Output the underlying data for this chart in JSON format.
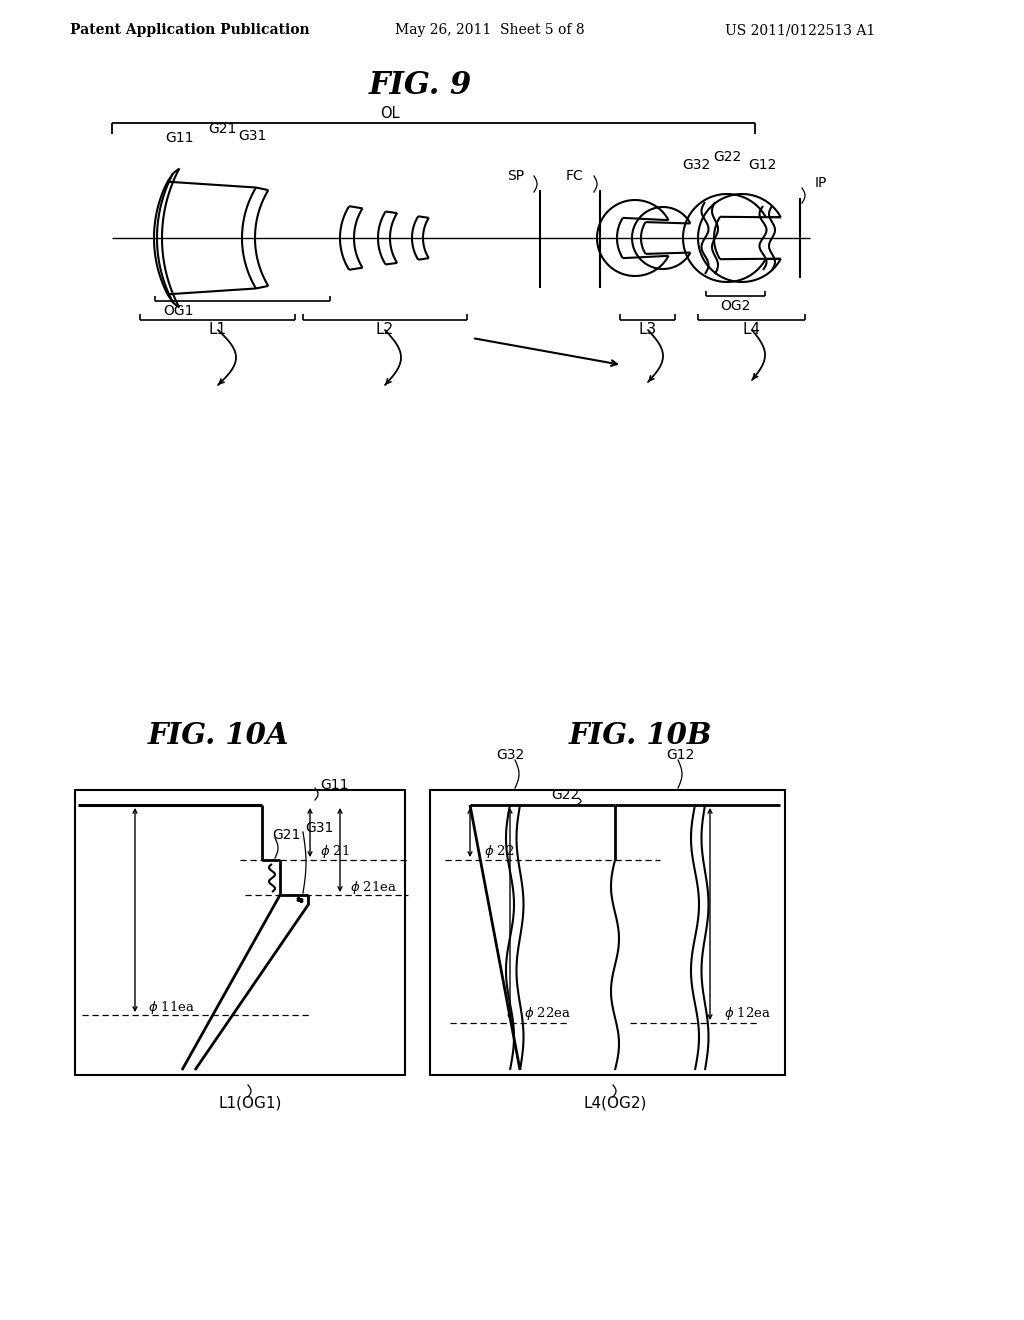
{
  "bg_color": "#ffffff",
  "header_left": "Patent Application Publication",
  "header_mid": "May 26, 2011  Sheet 5 of 8",
  "header_right": "US 2011/0122513 A1",
  "fig9_title": "FIG. 9",
  "fig10a_title": "FIG. 10A",
  "fig10b_title": "FIG. 10B",
  "lc": "#000000"
}
